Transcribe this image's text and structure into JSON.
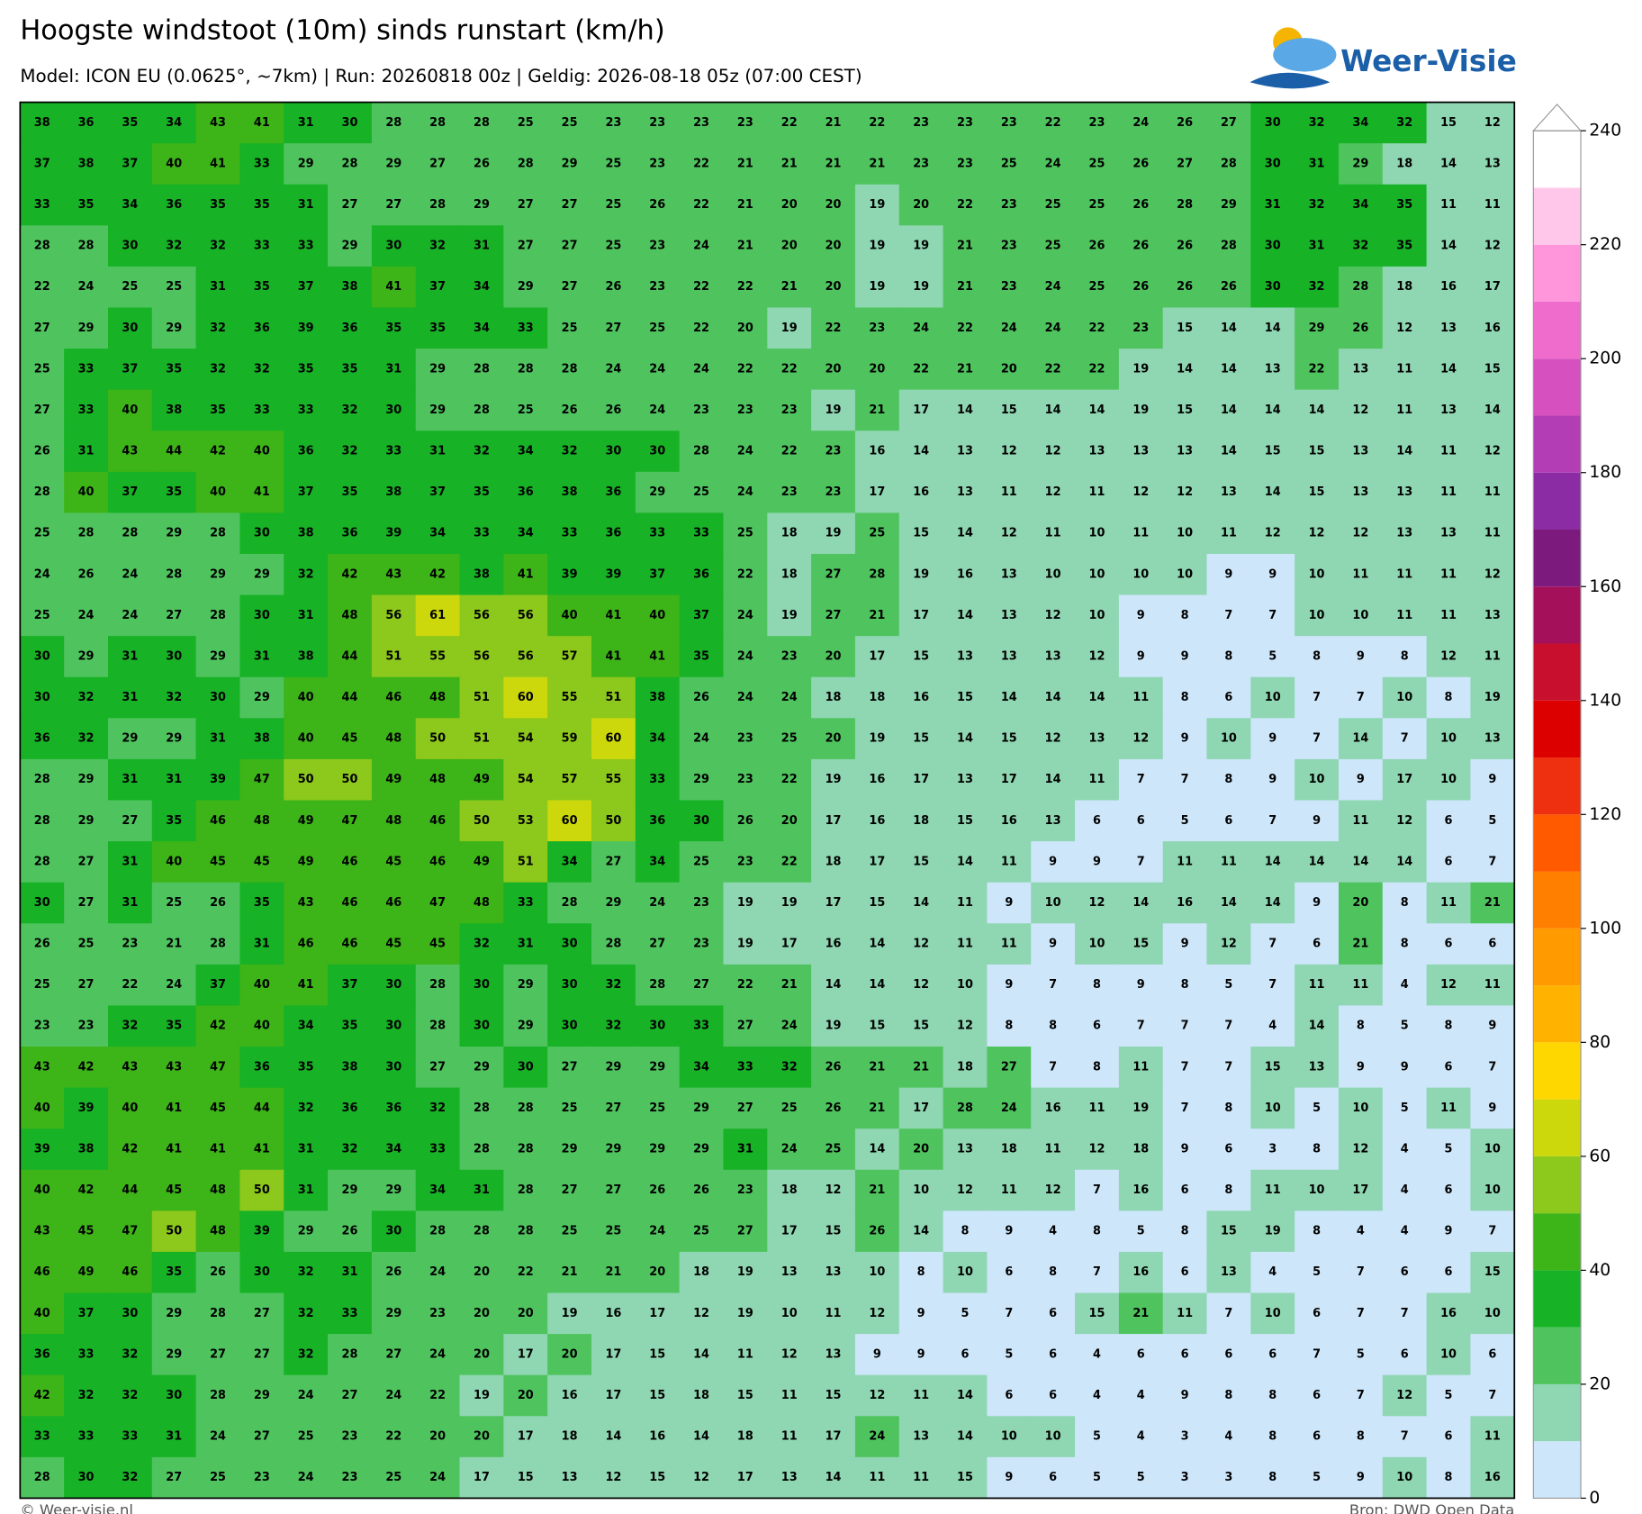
{
  "header": {
    "title": "Hoogste windstoot (10m) sinds runstart (km/h)",
    "subtitle": "Model: ICON EU (0.0625°, ~7km)  |  Run: 20260818 00z  |  Geldig: 2026-08-18 05z (07:00 CEST)"
  },
  "logo": "Weer-Visie",
  "grid": {
    "rows": [
      [
        38,
        36,
        35,
        34,
        43,
        41,
        31,
        30,
        28,
        28,
        28,
        25,
        25,
        23,
        23,
        23,
        23,
        22,
        21,
        22,
        23,
        23,
        23,
        22,
        23,
        24,
        26,
        27,
        30,
        32,
        34,
        32,
        15,
        12
      ],
      [
        37,
        38,
        37,
        40,
        41,
        33,
        29,
        28,
        29,
        27,
        26,
        28,
        29,
        25,
        23,
        22,
        21,
        21,
        21,
        21,
        23,
        23,
        25,
        24,
        25,
        26,
        27,
        28,
        30,
        31,
        29,
        18,
        14,
        13
      ],
      [
        33,
        35,
        34,
        36,
        35,
        35,
        31,
        27,
        27,
        28,
        29,
        27,
        27,
        25,
        26,
        22,
        21,
        20,
        20,
        19,
        20,
        22,
        23,
        25,
        25,
        26,
        28,
        29,
        31,
        32,
        34,
        35,
        11,
        11
      ],
      [
        28,
        28,
        30,
        32,
        32,
        33,
        33,
        29,
        30,
        32,
        31,
        27,
        27,
        25,
        23,
        24,
        21,
        20,
        20,
        19,
        19,
        21,
        23,
        25,
        26,
        26,
        26,
        28,
        30,
        31,
        32,
        35,
        14,
        12
      ],
      [
        22,
        24,
        25,
        25,
        31,
        35,
        37,
        38,
        41,
        37,
        34,
        29,
        27,
        26,
        23,
        22,
        22,
        21,
        20,
        19,
        19,
        21,
        23,
        24,
        25,
        26,
        26,
        26,
        30,
        32,
        28,
        18,
        16,
        17
      ],
      [
        27,
        29,
        30,
        29,
        32,
        36,
        39,
        36,
        35,
        35,
        34,
        33,
        25,
        27,
        25,
        22,
        20,
        19,
        22,
        23,
        24,
        22,
        24,
        24,
        22,
        23,
        15,
        14,
        14,
        29,
        26,
        12,
        13,
        16
      ],
      [
        25,
        33,
        37,
        35,
        32,
        32,
        35,
        35,
        31,
        29,
        28,
        28,
        28,
        24,
        24,
        24,
        22,
        22,
        20,
        20,
        22,
        21,
        20,
        22,
        22,
        19,
        14,
        14,
        13,
        22,
        13,
        11,
        14,
        15
      ],
      [
        27,
        33,
        40,
        38,
        35,
        33,
        33,
        32,
        30,
        29,
        28,
        25,
        26,
        26,
        24,
        23,
        23,
        23,
        19,
        21,
        17,
        14,
        15,
        14,
        14,
        19,
        15,
        14,
        14,
        14,
        12,
        11,
        13,
        14
      ],
      [
        26,
        31,
        43,
        44,
        42,
        40,
        36,
        32,
        33,
        31,
        32,
        34,
        32,
        30,
        30,
        28,
        24,
        22,
        23,
        16,
        14,
        13,
        12,
        12,
        13,
        13,
        13,
        14,
        15,
        15,
        13,
        14,
        11,
        12
      ],
      [
        28,
        40,
        37,
        35,
        40,
        41,
        37,
        35,
        38,
        37,
        35,
        36,
        38,
        36,
        29,
        25,
        24,
        23,
        23,
        17,
        16,
        13,
        11,
        12,
        11,
        12,
        12,
        13,
        14,
        15,
        13,
        13,
        11,
        11
      ],
      [
        25,
        28,
        28,
        29,
        28,
        30,
        38,
        36,
        39,
        34,
        33,
        34,
        33,
        36,
        33,
        33,
        25,
        18,
        19,
        25,
        15,
        14,
        12,
        11,
        10,
        11,
        10,
        11,
        12,
        12,
        12,
        13,
        13,
        11
      ],
      [
        24,
        26,
        24,
        28,
        29,
        29,
        32,
        42,
        43,
        42,
        38,
        41,
        39,
        39,
        37,
        36,
        22,
        18,
        27,
        28,
        19,
        16,
        13,
        10,
        10,
        10,
        10,
        9,
        9,
        10,
        11,
        11,
        11,
        12
      ],
      [
        25,
        24,
        24,
        27,
        28,
        30,
        31,
        48,
        56,
        61,
        56,
        56,
        40,
        41,
        40,
        37,
        24,
        19,
        27,
        21,
        17,
        14,
        13,
        12,
        10,
        9,
        8,
        7,
        7,
        10,
        10,
        11,
        11,
        13
      ],
      [
        30,
        29,
        31,
        30,
        29,
        31,
        38,
        44,
        51,
        55,
        56,
        56,
        57,
        41,
        41,
        35,
        24,
        23,
        20,
        17,
        15,
        13,
        13,
        13,
        12,
        9,
        9,
        8,
        5,
        8,
        9,
        8,
        12,
        11
      ],
      [
        30,
        32,
        31,
        32,
        30,
        29,
        40,
        44,
        46,
        48,
        51,
        60,
        55,
        51,
        38,
        26,
        24,
        24,
        18,
        18,
        16,
        15,
        14,
        14,
        14,
        11,
        8,
        6,
        10,
        7,
        7,
        10,
        8,
        19
      ],
      [
        36,
        32,
        29,
        29,
        31,
        38,
        40,
        45,
        48,
        50,
        51,
        54,
        59,
        60,
        34,
        24,
        23,
        25,
        20,
        19,
        15,
        14,
        15,
        12,
        13,
        12,
        9,
        10,
        9,
        7,
        14,
        7,
        10,
        13
      ],
      [
        28,
        29,
        31,
        31,
        39,
        47,
        50,
        50,
        49,
        48,
        49,
        54,
        57,
        55,
        33,
        29,
        23,
        22,
        19,
        16,
        17,
        13,
        17,
        14,
        11,
        7,
        7,
        8,
        9,
        10,
        9,
        17,
        10,
        9
      ],
      [
        28,
        29,
        27,
        35,
        46,
        48,
        49,
        47,
        48,
        46,
        50,
        53,
        60,
        50,
        36,
        30,
        26,
        20,
        17,
        16,
        18,
        15,
        16,
        13,
        6,
        6,
        5,
        6,
        7,
        9,
        11,
        12,
        6,
        5
      ],
      [
        28,
        27,
        31,
        40,
        45,
        45,
        49,
        46,
        45,
        46,
        49,
        51,
        34,
        27,
        34,
        25,
        23,
        22,
        18,
        17,
        15,
        14,
        11,
        9,
        9,
        7,
        11,
        11,
        14,
        14,
        14,
        14,
        6,
        7
      ],
      [
        30,
        27,
        31,
        25,
        26,
        35,
        43,
        46,
        46,
        47,
        48,
        33,
        28,
        29,
        24,
        23,
        19,
        19,
        17,
        15,
        14,
        11,
        9,
        10,
        12,
        14,
        16,
        14,
        14,
        9,
        20,
        8,
        11,
        21
      ],
      [
        26,
        25,
        23,
        21,
        28,
        31,
        46,
        46,
        45,
        45,
        32,
        31,
        30,
        28,
        27,
        23,
        19,
        17,
        16,
        14,
        12,
        11,
        11,
        9,
        10,
        15,
        9,
        12,
        7,
        6,
        21,
        8,
        6,
        6
      ],
      [
        25,
        27,
        22,
        24,
        37,
        40,
        41,
        37,
        30,
        28,
        30,
        29,
        30,
        32,
        28,
        27,
        22,
        21,
        14,
        14,
        12,
        10,
        9,
        7,
        8,
        9,
        8,
        5,
        7,
        11,
        11,
        4,
        12,
        11
      ],
      [
        23,
        23,
        32,
        35,
        42,
        40,
        34,
        35,
        30,
        28,
        30,
        29,
        30,
        32,
        30,
        33,
        27,
        24,
        19,
        15,
        15,
        12,
        8,
        8,
        6,
        7,
        7,
        7,
        4,
        14,
        8,
        5,
        8,
        9
      ],
      [
        43,
        42,
        43,
        43,
        47,
        36,
        35,
        38,
        30,
        27,
        29,
        30,
        27,
        29,
        29,
        34,
        33,
        32,
        26,
        21,
        21,
        18,
        27,
        7,
        8,
        11,
        7,
        7,
        15,
        13,
        9,
        9,
        6,
        7
      ],
      [
        40,
        39,
        40,
        41,
        45,
        44,
        32,
        36,
        36,
        32,
        28,
        28,
        25,
        27,
        25,
        29,
        27,
        25,
        26,
        21,
        17,
        28,
        24,
        16,
        11,
        19,
        7,
        8,
        10,
        5,
        10,
        5,
        11,
        9
      ],
      [
        39,
        38,
        42,
        41,
        41,
        41,
        31,
        32,
        34,
        33,
        28,
        28,
        29,
        29,
        29,
        29,
        31,
        24,
        25,
        14,
        20,
        13,
        18,
        11,
        12,
        18,
        9,
        6,
        3,
        8,
        12,
        4,
        5,
        10
      ],
      [
        40,
        42,
        44,
        45,
        48,
        50,
        31,
        29,
        29,
        34,
        31,
        28,
        27,
        27,
        26,
        26,
        23,
        18,
        12,
        21,
        10,
        12,
        11,
        12,
        7,
        16,
        6,
        8,
        11,
        10,
        17,
        4,
        6,
        10
      ],
      [
        43,
        45,
        47,
        50,
        48,
        39,
        29,
        26,
        30,
        28,
        28,
        28,
        25,
        25,
        24,
        25,
        27,
        17,
        15,
        26,
        14,
        8,
        9,
        4,
        8,
        5,
        8,
        15,
        19,
        8,
        4,
        4,
        9,
        7
      ],
      [
        46,
        49,
        46,
        35,
        26,
        30,
        32,
        31,
        26,
        24,
        20,
        22,
        21,
        21,
        20,
        18,
        19,
        13,
        13,
        10,
        8,
        10,
        6,
        8,
        7,
        16,
        6,
        13,
        4,
        5,
        7,
        6,
        6,
        15
      ],
      [
        40,
        37,
        30,
        29,
        28,
        27,
        32,
        33,
        29,
        23,
        20,
        20,
        19,
        16,
        17,
        12,
        19,
        10,
        11,
        12,
        9,
        5,
        7,
        6,
        15,
        21,
        11,
        7,
        10,
        6,
        7,
        7,
        16,
        10
      ],
      [
        36,
        33,
        32,
        29,
        27,
        27,
        32,
        28,
        27,
        24,
        20,
        17,
        20,
        17,
        15,
        14,
        11,
        12,
        13,
        9,
        9,
        6,
        5,
        6,
        4,
        6,
        6,
        6,
        6,
        7,
        5,
        6,
        10,
        6
      ],
      [
        42,
        32,
        32,
        30,
        28,
        29,
        24,
        27,
        24,
        22,
        19,
        20,
        16,
        17,
        15,
        18,
        15,
        11,
        15,
        12,
        11,
        14,
        6,
        6,
        4,
        4,
        9,
        8,
        8,
        6,
        7,
        12,
        5,
        7
      ],
      [
        33,
        33,
        33,
        31,
        24,
        27,
        25,
        23,
        22,
        20,
        20,
        17,
        18,
        14,
        16,
        14,
        18,
        11,
        17,
        24,
        13,
        14,
        10,
        10,
        5,
        4,
        3,
        4,
        8,
        6,
        8,
        7,
        6,
        11
      ],
      [
        28,
        30,
        32,
        27,
        25,
        23,
        24,
        23,
        25,
        24,
        17,
        15,
        13,
        12,
        15,
        12,
        17,
        13,
        14,
        11,
        11,
        15,
        9,
        6,
        5,
        5,
        3,
        3,
        8,
        5,
        9,
        10,
        8,
        16
      ]
    ]
  },
  "colorbar": {
    "bounds": [
      0,
      10,
      20,
      30,
      40,
      50,
      60,
      70,
      80,
      90,
      100,
      110,
      120,
      130,
      140,
      150,
      160,
      170,
      180,
      190,
      200,
      210,
      220,
      230,
      240
    ],
    "colors": [
      "#cde6fa",
      "#8fd6b2",
      "#4fc45e",
      "#17b226",
      "#3db418",
      "#8dc81c",
      "#ccd80c",
      "#ffd700",
      "#ffb300",
      "#ff9a00",
      "#ff7f00",
      "#ff5a00",
      "#ee3010",
      "#dd0000",
      "#c8102e",
      "#a5105a",
      "#7c1a7e",
      "#8c2ca4",
      "#b33db4",
      "#d650c0",
      "#f06ccc",
      "#ff96dc",
      "#ffc8ea",
      "#ffffff"
    ],
    "ticks": [
      0,
      20,
      40,
      60,
      80,
      100,
      120,
      140,
      160,
      180,
      200,
      220,
      240
    ]
  },
  "footer": {
    "left": "© Weer-visie.nl",
    "right": "Bron: DWD Open Data"
  }
}
